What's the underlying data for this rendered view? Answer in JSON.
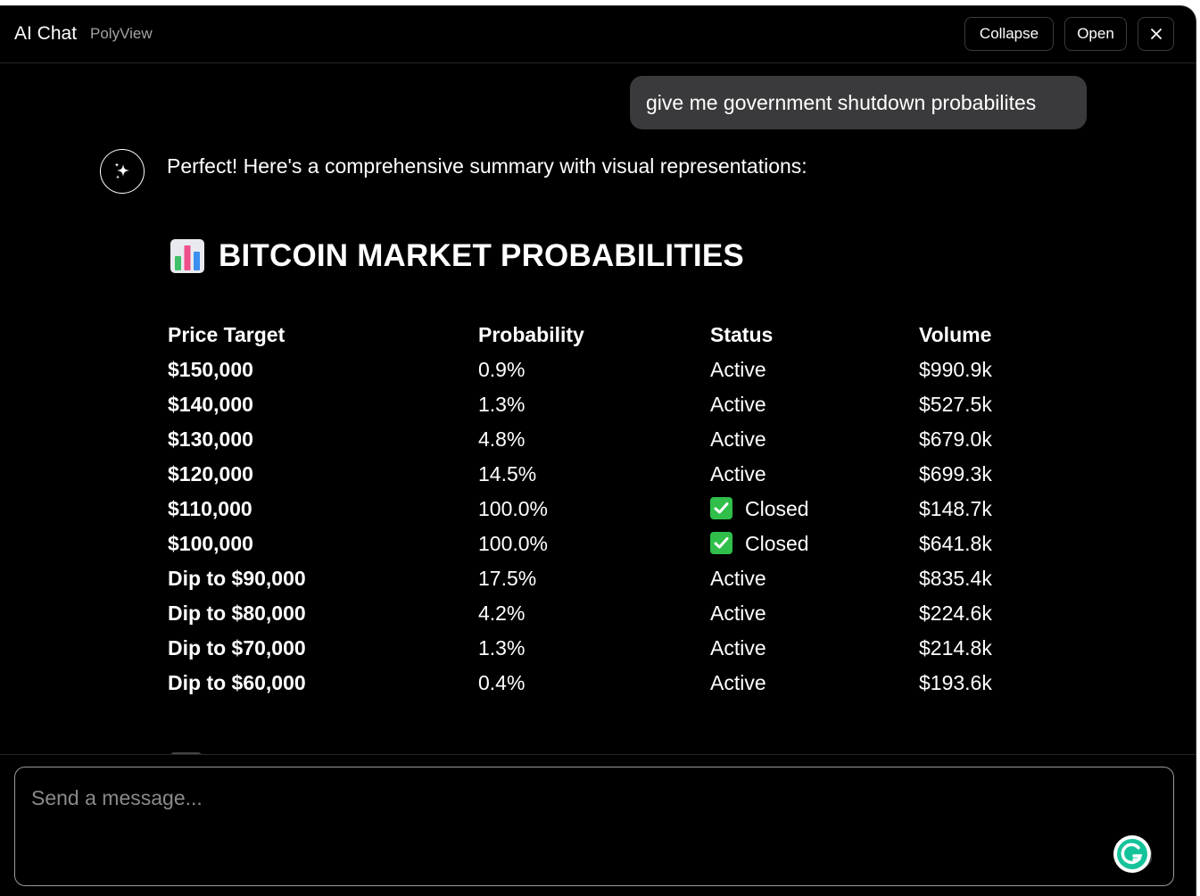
{
  "header": {
    "title": "AI Chat",
    "subtitle": "PolyView",
    "collapse_label": "Collapse",
    "open_label": "Open",
    "close_icon": "close-icon"
  },
  "messages": {
    "user": "give me government shutdown probabilites",
    "assistant_intro": "Perfect! Here's a comprehensive summary with visual representations:",
    "assistant_icon": "sparkle-icon"
  },
  "section": {
    "emoji_icon": "bar-chart-emoji-icon",
    "heading": "BITCOIN MARKET PROBABILITIES"
  },
  "table": {
    "headers": [
      "Price Target",
      "Probability",
      "Status",
      "Volume"
    ],
    "rows": [
      {
        "target": "$150,000",
        "probability": "0.9%",
        "status": "Active",
        "volume": "$990.9k",
        "closed": false
      },
      {
        "target": "$140,000",
        "probability": "1.3%",
        "status": "Active",
        "volume": "$527.5k",
        "closed": false
      },
      {
        "target": "$130,000",
        "probability": "4.8%",
        "status": "Active",
        "volume": "$679.0k",
        "closed": false
      },
      {
        "target": "$120,000",
        "probability": "14.5%",
        "status": "Active",
        "volume": "$699.3k",
        "closed": false
      },
      {
        "target": "$110,000",
        "probability": "100.0%",
        "status": "Closed",
        "volume": "$148.7k",
        "closed": true
      },
      {
        "target": "$100,000",
        "probability": "100.0%",
        "status": "Closed",
        "volume": "$641.8k",
        "closed": true
      },
      {
        "target": "Dip to $90,000",
        "probability": "17.5%",
        "status": "Active",
        "volume": "$835.4k",
        "closed": false
      },
      {
        "target": "Dip to $80,000",
        "probability": "4.2%",
        "status": "Active",
        "volume": "$224.6k",
        "closed": false
      },
      {
        "target": "Dip to $70,000",
        "probability": "1.3%",
        "status": "Active",
        "volume": "$214.8k",
        "closed": false
      },
      {
        "target": "Dip to $60,000",
        "probability": "0.4%",
        "status": "Active",
        "volume": "$193.6k",
        "closed": false
      }
    ]
  },
  "composer": {
    "placeholder": "Send a message...",
    "value": "",
    "extension_icon": "grammarly-icon"
  },
  "colors": {
    "background": "#000000",
    "user_bubble": "#3a3a3c",
    "muted_text": "#a3a3a3",
    "check_green": "#2fbf4a",
    "grammarly_green": "#15c39a"
  }
}
